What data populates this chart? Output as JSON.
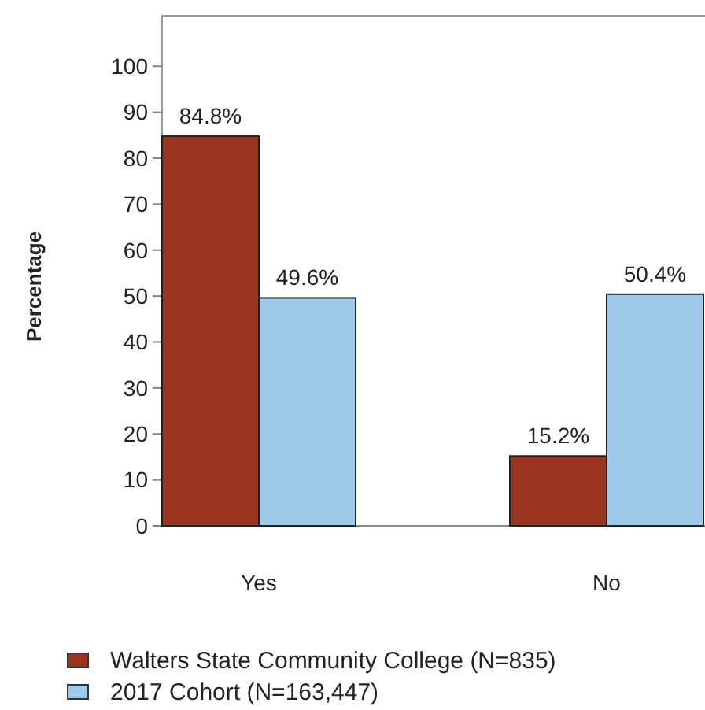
{
  "chart_data": {
    "type": "bar",
    "ylabel": "Percentage",
    "categories": [
      "Yes",
      "No"
    ],
    "series": [
      {
        "name": "Walters State Community College (N=835)",
        "color": "#993421",
        "values": [
          84.8,
          15.2
        ]
      },
      {
        "name": "2017 Cohort (N=163,447)",
        "color": "#9fc9e9",
        "values": [
          49.6,
          50.4
        ]
      }
    ],
    "ylim": [
      0,
      111
    ],
    "yticks": [
      0,
      10,
      20,
      30,
      40,
      50,
      60,
      70,
      80,
      90,
      100
    ],
    "grid": false,
    "legend": "bottom",
    "value_labels": [
      [
        "84.8%",
        "15.2%"
      ],
      [
        "49.6%",
        "50.4%"
      ]
    ]
  }
}
